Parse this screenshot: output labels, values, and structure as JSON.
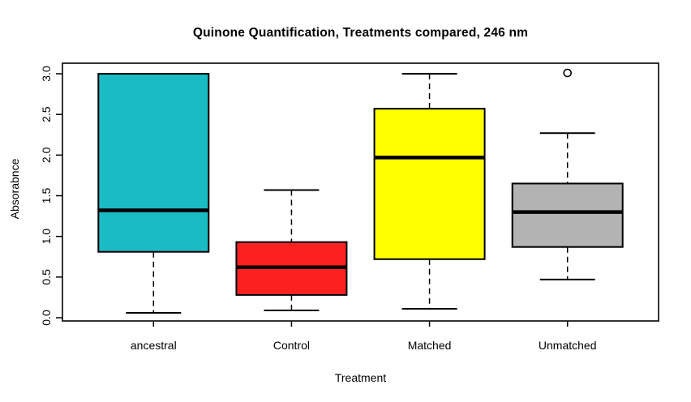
{
  "chart_data": {
    "type": "boxplot",
    "title": "Quinone Quantification, Treatments compared, 246 nm",
    "xlabel": "Treatment",
    "ylabel": "Absorabnce",
    "categories": [
      "ancestral",
      "Control",
      "Matched",
      "Unmatched"
    ],
    "ylim": [
      0,
      3
    ],
    "yticks": [
      0.0,
      0.5,
      1.0,
      1.5,
      2.0,
      2.5,
      3.0
    ],
    "ytick_labels": [
      "0.0",
      "0.5",
      "1.0",
      "1.5",
      "2.0",
      "2.5",
      "3.0"
    ],
    "grid": false,
    "legend": "none",
    "colors": {
      "box_border": "#000000",
      "median_line": "#000000",
      "whisker": "#000000",
      "axis": "#000000"
    },
    "series": [
      {
        "name": "ancestral",
        "color": "#1ABBC3",
        "min": 0.06,
        "q1": 0.81,
        "median": 1.32,
        "q3": 3.0,
        "max": 3.0,
        "outliers": []
      },
      {
        "name": "Control",
        "color": "#FC2121",
        "min": 0.09,
        "q1": 0.28,
        "median": 0.62,
        "q3": 0.93,
        "max": 1.57,
        "outliers": []
      },
      {
        "name": "Matched",
        "color": "#FFFF00",
        "min": 0.11,
        "q1": 0.72,
        "median": 1.97,
        "q3": 2.57,
        "max": 3.0,
        "outliers": []
      },
      {
        "name": "Unmatched",
        "color": "#B3B3B3",
        "min": 0.47,
        "q1": 0.87,
        "median": 1.3,
        "q3": 1.65,
        "max": 2.27,
        "outliers": [
          3.0
        ]
      }
    ]
  }
}
